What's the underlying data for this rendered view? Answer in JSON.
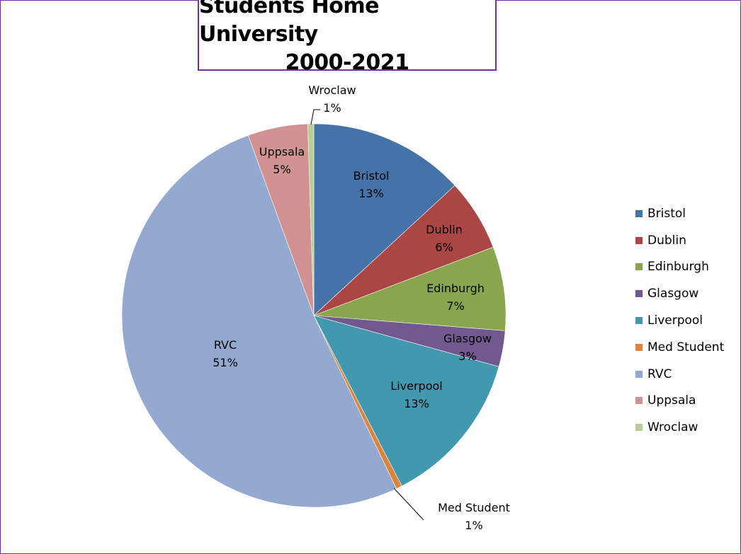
{
  "chart_data": {
    "type": "pie",
    "title_lines": [
      "Students Home University",
      "2000-2021"
    ],
    "slices": [
      {
        "label": "Bristol",
        "value": 13,
        "display": "13%",
        "color": "#4572a7"
      },
      {
        "label": "Dublin",
        "value": 6,
        "display": "6%",
        "color": "#aa4643"
      },
      {
        "label": "Edinburgh",
        "value": 7,
        "display": "7%",
        "color": "#89a54e"
      },
      {
        "label": "Glasgow",
        "value": 3,
        "display": "3%",
        "color": "#71588f"
      },
      {
        "label": "Liverpool",
        "value": 13,
        "display": "13%",
        "color": "#4198af"
      },
      {
        "label": "Med Student",
        "value": 0.5,
        "display": "1%",
        "color": "#db843d"
      },
      {
        "label": "RVC",
        "value": 51,
        "display": "51%",
        "color": "#93a9cf"
      },
      {
        "label": "Uppsala",
        "value": 5,
        "display": "5%",
        "color": "#d09391"
      },
      {
        "label": "Wroclaw",
        "value": 0.5,
        "display": "1%",
        "color": "#b9cd96"
      }
    ],
    "legend_position": "right"
  }
}
